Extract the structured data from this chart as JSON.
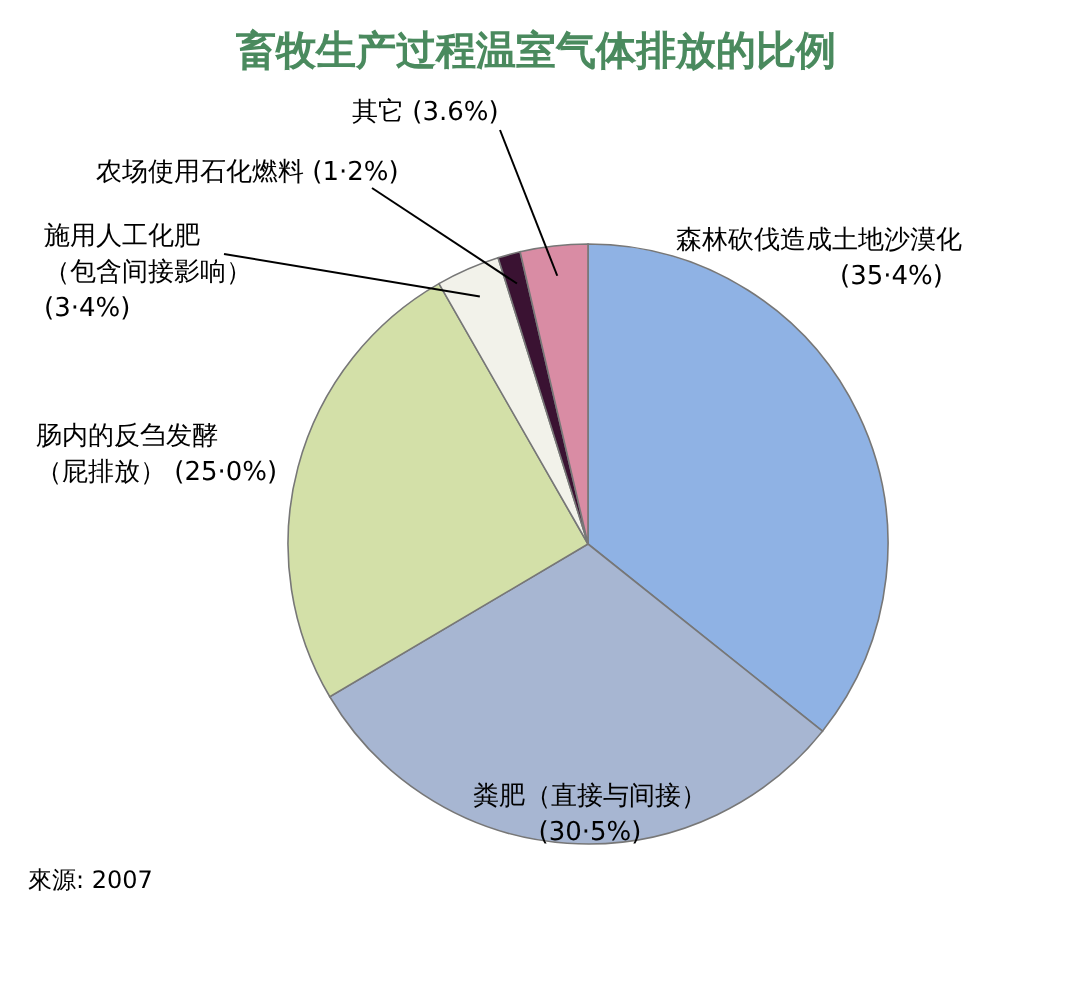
{
  "chart_data": {
    "type": "pie",
    "title": "畜牧生产过程温室气体排放的比例",
    "categories": [
      "森林砍伐造成土地沙漠化",
      "粪肥（直接与间接）",
      "肠内的反刍发酵（屁排放）",
      "施用人工化肥（包含间接影响）",
      "农场使用石化燃料",
      "其它"
    ],
    "values": [
      35.4,
      30.5,
      25.0,
      3.4,
      1.2,
      3.6
    ],
    "value_labels": [
      "(35·4%)",
      "(30·5%)",
      "(25·0%)",
      "(3·4%)",
      "(1·2%)",
      "(3.6%)"
    ],
    "colors": [
      "#8fb2e4",
      "#a7b6d2",
      "#d3e0a8",
      "#f2f2ea",
      "#3a1232",
      "#d98ca4"
    ],
    "annotations": [
      "來源: 2007"
    ]
  }
}
